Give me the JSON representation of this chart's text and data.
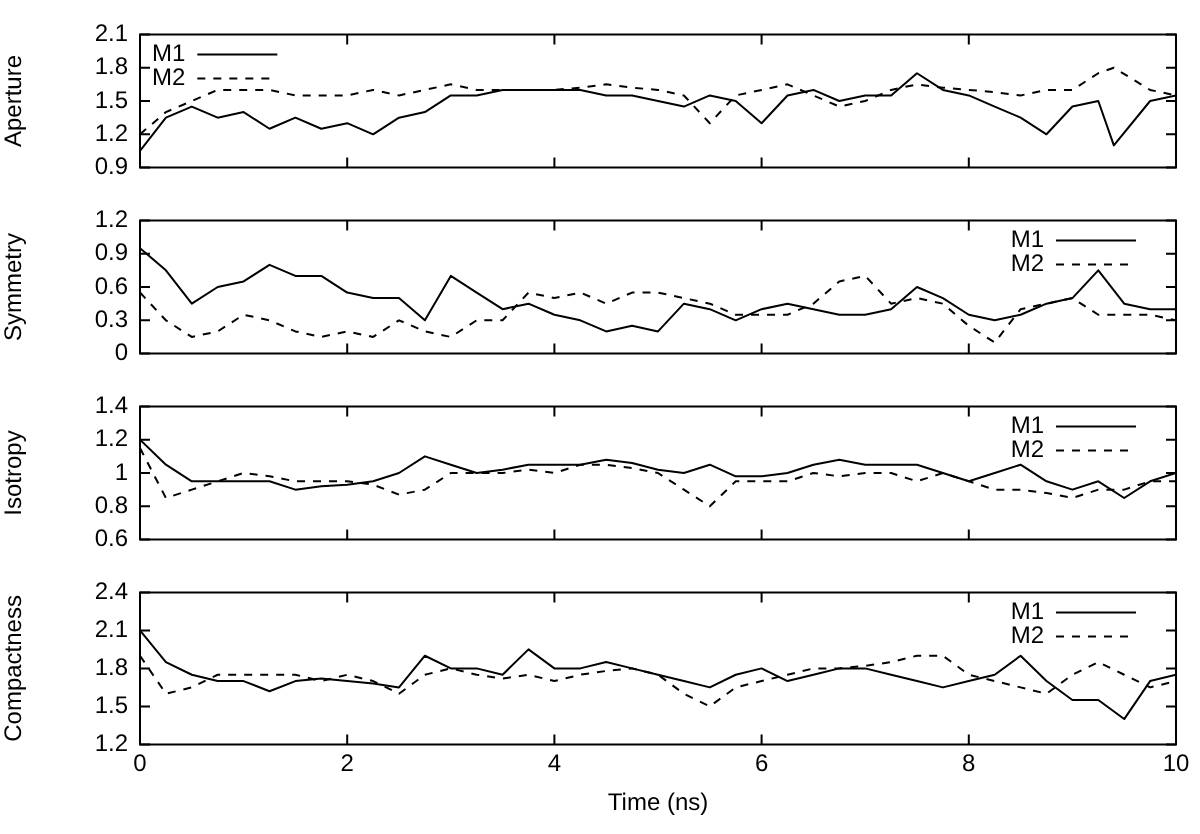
{
  "chart_data": [
    {
      "type": "line",
      "ylabel": "Aperture",
      "x": [
        0,
        0.25,
        0.5,
        0.75,
        1,
        1.25,
        1.5,
        1.75,
        2,
        2.25,
        2.5,
        2.75,
        3,
        3.25,
        3.5,
        3.75,
        4,
        4.25,
        4.5,
        4.75,
        5,
        5.25,
        5.5,
        5.75,
        6,
        6.25,
        6.5,
        6.75,
        7,
        7.25,
        7.5,
        7.75,
        8,
        8.25,
        8.5,
        8.75,
        9,
        9.25,
        9.4,
        9.75,
        10
      ],
      "xlim": [
        0,
        10
      ],
      "xticks": [
        0,
        2,
        4,
        6,
        8,
        10
      ],
      "ylim": [
        0.9,
        2.1
      ],
      "yticks": [
        0.9,
        1.2,
        1.5,
        1.8,
        2.1
      ],
      "tick_labels": "y",
      "legend": "top left",
      "marker": "none",
      "grid": false,
      "series": [
        {
          "name": "M1",
          "color": "#000000",
          "line_style": "solid",
          "values": [
            1.05,
            1.35,
            1.45,
            1.35,
            1.4,
            1.25,
            1.35,
            1.25,
            1.3,
            1.2,
            1.35,
            1.4,
            1.55,
            1.55,
            1.6,
            1.6,
            1.6,
            1.6,
            1.55,
            1.55,
            1.5,
            1.45,
            1.55,
            1.5,
            1.3,
            1.55,
            1.6,
            1.5,
            1.55,
            1.55,
            1.75,
            1.6,
            1.55,
            1.45,
            1.35,
            1.2,
            1.45,
            1.5,
            1.1,
            1.5,
            1.55
          ]
        },
        {
          "name": "M2",
          "color": "#000000",
          "line_style": "dashed",
          "values": [
            1.2,
            1.4,
            1.5,
            1.6,
            1.6,
            1.6,
            1.55,
            1.55,
            1.55,
            1.6,
            1.55,
            1.6,
            1.65,
            1.6,
            1.6,
            1.6,
            1.6,
            1.62,
            1.65,
            1.62,
            1.6,
            1.55,
            1.3,
            1.55,
            1.6,
            1.65,
            1.55,
            1.45,
            1.5,
            1.6,
            1.65,
            1.62,
            1.6,
            1.58,
            1.55,
            1.6,
            1.6,
            1.75,
            1.8,
            1.6,
            1.55
          ]
        }
      ]
    },
    {
      "type": "line",
      "ylabel": "Symmetry",
      "x": [
        0,
        0.25,
        0.5,
        0.75,
        1,
        1.25,
        1.5,
        1.75,
        2,
        2.25,
        2.5,
        2.75,
        3,
        3.25,
        3.5,
        3.75,
        4,
        4.25,
        4.5,
        4.75,
        5,
        5.25,
        5.5,
        5.75,
        6,
        6.25,
        6.5,
        6.75,
        7,
        7.25,
        7.5,
        7.75,
        8,
        8.25,
        8.5,
        8.75,
        9,
        9.25,
        9.5,
        9.75,
        10
      ],
      "xlim": [
        0,
        10
      ],
      "xticks": [
        0,
        2,
        4,
        6,
        8,
        10
      ],
      "ylim": [
        0,
        1.2
      ],
      "yticks": [
        0,
        0.3,
        0.6,
        0.9,
        1.2
      ],
      "tick_labels": "y",
      "legend": "top right",
      "marker": "none",
      "grid": false,
      "series": [
        {
          "name": "M1",
          "color": "#000000",
          "line_style": "solid",
          "values": [
            0.95,
            0.75,
            0.45,
            0.6,
            0.65,
            0.8,
            0.7,
            0.7,
            0.55,
            0.5,
            0.5,
            0.3,
            0.7,
            0.55,
            0.4,
            0.45,
            0.35,
            0.3,
            0.2,
            0.25,
            0.2,
            0.45,
            0.4,
            0.3,
            0.4,
            0.45,
            0.4,
            0.35,
            0.35,
            0.4,
            0.6,
            0.5,
            0.35,
            0.3,
            0.35,
            0.45,
            0.5,
            0.75,
            0.45,
            0.4,
            0.4
          ]
        },
        {
          "name": "M2",
          "color": "#000000",
          "line_style": "dashed",
          "values": [
            0.55,
            0.3,
            0.15,
            0.2,
            0.35,
            0.3,
            0.2,
            0.15,
            0.2,
            0.15,
            0.3,
            0.2,
            0.15,
            0.3,
            0.3,
            0.55,
            0.5,
            0.55,
            0.45,
            0.55,
            0.55,
            0.5,
            0.45,
            0.35,
            0.35,
            0.35,
            0.45,
            0.65,
            0.7,
            0.45,
            0.5,
            0.45,
            0.25,
            0.1,
            0.4,
            0.45,
            0.5,
            0.35,
            0.35,
            0.35,
            0.3
          ]
        }
      ]
    },
    {
      "type": "line",
      "ylabel": "Isotropy",
      "x": [
        0,
        0.25,
        0.5,
        0.75,
        1,
        1.25,
        1.5,
        1.75,
        2,
        2.25,
        2.5,
        2.75,
        3,
        3.25,
        3.5,
        3.75,
        4,
        4.25,
        4.5,
        4.75,
        5,
        5.25,
        5.5,
        5.75,
        6,
        6.25,
        6.5,
        6.75,
        7,
        7.25,
        7.5,
        7.75,
        8,
        8.25,
        8.5,
        8.75,
        9,
        9.25,
        9.5,
        9.75,
        10
      ],
      "xlim": [
        0,
        10
      ],
      "xticks": [
        0,
        2,
        4,
        6,
        8,
        10
      ],
      "ylim": [
        0.6,
        1.4
      ],
      "yticks": [
        0.6,
        0.8,
        1,
        1.2,
        1.4
      ],
      "tick_labels": "y",
      "legend": "top right",
      "marker": "none",
      "grid": false,
      "series": [
        {
          "name": "M1",
          "color": "#000000",
          "line_style": "solid",
          "values": [
            1.2,
            1.05,
            0.95,
            0.95,
            0.95,
            0.95,
            0.9,
            0.92,
            0.93,
            0.95,
            1.0,
            1.1,
            1.05,
            1.0,
            1.02,
            1.05,
            1.05,
            1.05,
            1.08,
            1.06,
            1.02,
            1.0,
            1.05,
            0.98,
            0.98,
            1.0,
            1.05,
            1.08,
            1.05,
            1.05,
            1.05,
            1.0,
            0.95,
            1.0,
            1.05,
            0.95,
            0.9,
            0.95,
            0.85,
            0.95,
            1.0
          ]
        },
        {
          "name": "M2",
          "color": "#000000",
          "line_style": "dashed",
          "values": [
            1.15,
            0.85,
            0.9,
            0.95,
            1.0,
            0.98,
            0.95,
            0.95,
            0.95,
            0.93,
            0.87,
            0.9,
            1.0,
            1.0,
            1.0,
            1.02,
            1.0,
            1.05,
            1.05,
            1.03,
            1.0,
            0.9,
            0.8,
            0.95,
            0.95,
            0.95,
            1.0,
            0.98,
            1.0,
            1.0,
            0.95,
            1.0,
            0.95,
            0.9,
            0.9,
            0.88,
            0.85,
            0.9,
            0.9,
            0.95,
            0.95
          ]
        }
      ]
    },
    {
      "type": "line",
      "ylabel": "Compactness",
      "xlabel": "Time (ns)",
      "x": [
        0,
        0.25,
        0.5,
        0.75,
        1,
        1.25,
        1.5,
        1.75,
        2,
        2.25,
        2.5,
        2.75,
        3,
        3.25,
        3.5,
        3.75,
        4,
        4.25,
        4.5,
        4.75,
        5,
        5.25,
        5.5,
        5.75,
        6,
        6.25,
        6.5,
        6.75,
        7,
        7.25,
        7.5,
        7.75,
        8,
        8.25,
        8.5,
        8.75,
        9,
        9.25,
        9.5,
        9.75,
        10
      ],
      "xlim": [
        0,
        10
      ],
      "xticks": [
        0,
        2,
        4,
        6,
        8,
        10
      ],
      "ylim": [
        1.2,
        2.4
      ],
      "yticks": [
        1.2,
        1.5,
        1.8,
        2.1,
        2.4
      ],
      "legend": "top right",
      "marker": "none",
      "grid": false,
      "series": [
        {
          "name": "M1",
          "color": "#000000",
          "line_style": "solid",
          "values": [
            2.1,
            1.85,
            1.75,
            1.7,
            1.7,
            1.62,
            1.7,
            1.72,
            1.7,
            1.68,
            1.65,
            1.9,
            1.8,
            1.8,
            1.75,
            1.95,
            1.8,
            1.8,
            1.85,
            1.8,
            1.75,
            1.7,
            1.65,
            1.75,
            1.8,
            1.7,
            1.75,
            1.8,
            1.8,
            1.75,
            1.7,
            1.65,
            1.7,
            1.75,
            1.9,
            1.7,
            1.55,
            1.55,
            1.4,
            1.7,
            1.75
          ]
        },
        {
          "name": "M2",
          "color": "#000000",
          "line_style": "dashed",
          "values": [
            1.9,
            1.6,
            1.65,
            1.75,
            1.75,
            1.75,
            1.75,
            1.7,
            1.75,
            1.7,
            1.6,
            1.75,
            1.8,
            1.75,
            1.72,
            1.75,
            1.7,
            1.75,
            1.78,
            1.8,
            1.75,
            1.6,
            1.5,
            1.65,
            1.7,
            1.75,
            1.8,
            1.8,
            1.82,
            1.85,
            1.9,
            1.9,
            1.75,
            1.7,
            1.65,
            1.6,
            1.75,
            1.85,
            1.75,
            1.65,
            1.7
          ]
        }
      ]
    }
  ]
}
